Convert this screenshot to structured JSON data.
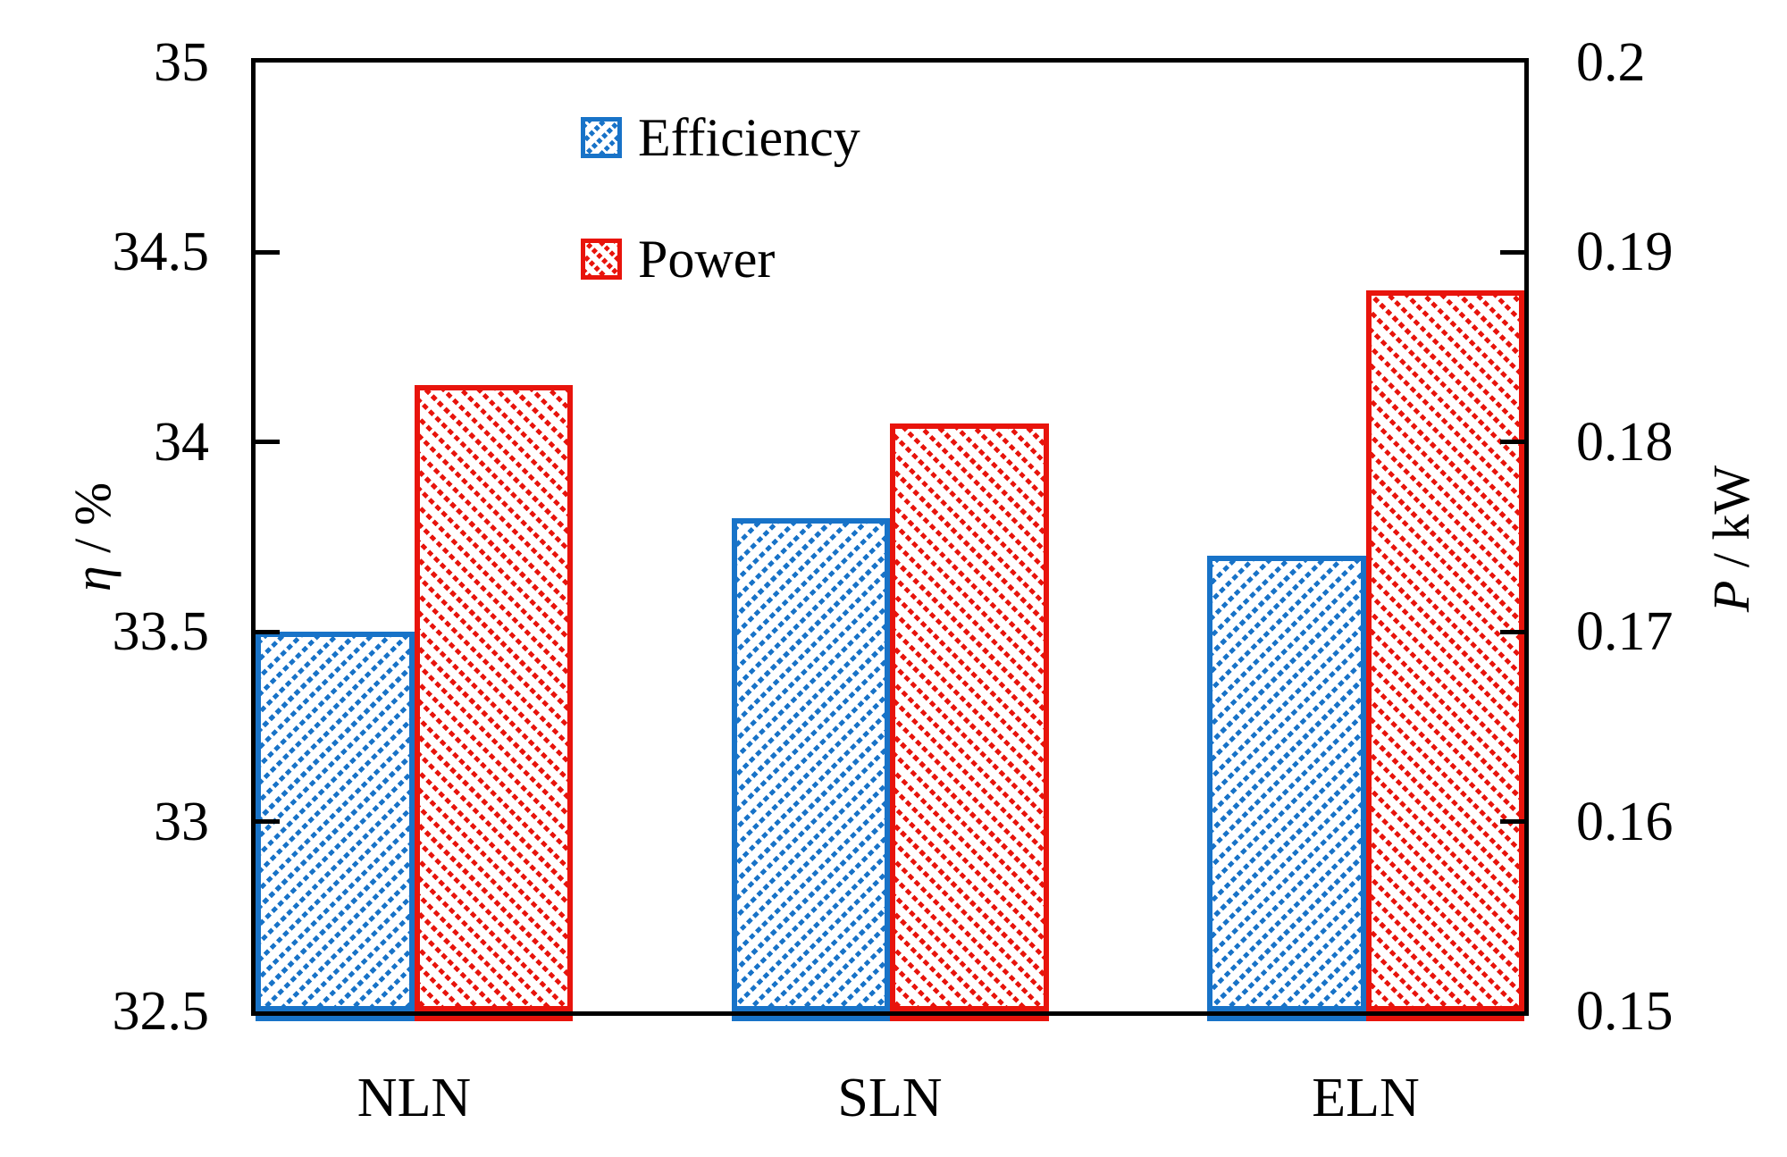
{
  "figure": {
    "background": "#ffffff"
  },
  "chart_data": {
    "type": "bar",
    "categories": [
      "NLN",
      "SLN",
      "ELN"
    ],
    "series": [
      {
        "name": "Efficiency",
        "axis": "left",
        "color": "#1873c8",
        "hatch": "\\",
        "values": [
          33.5,
          33.8,
          33.7
        ]
      },
      {
        "name": "Power",
        "axis": "right",
        "color": "#e8140c",
        "hatch": "/",
        "values": [
          0.183,
          0.181,
          0.188
        ]
      }
    ],
    "left_axis": {
      "label": "η / %",
      "label_var": "η",
      "label_rest": " / %",
      "min": 32.5,
      "max": 35,
      "tick_values": [
        35,
        34.5,
        34,
        33.5,
        33,
        32.5
      ],
      "tick_labels": [
        "35",
        "34.5",
        "34",
        "33.5",
        "33",
        "32.5"
      ]
    },
    "right_axis": {
      "label": "P / kW",
      "label_var": "P",
      "label_rest": " / kW",
      "min": 0.15,
      "max": 0.2,
      "tick_values": [
        0.2,
        0.19,
        0.18,
        0.17,
        0.16,
        0.15
      ],
      "tick_labels": [
        "0.2",
        "0.19",
        "0.18",
        "0.17",
        "0.16",
        "0.15"
      ]
    },
    "legend": {
      "position": "top-inside",
      "entries": [
        "Efficiency",
        "Power"
      ]
    },
    "grid": false,
    "bar_layout": {
      "bars_per_group": 2,
      "slots": 8,
      "group_stride_slots": 3
    }
  }
}
